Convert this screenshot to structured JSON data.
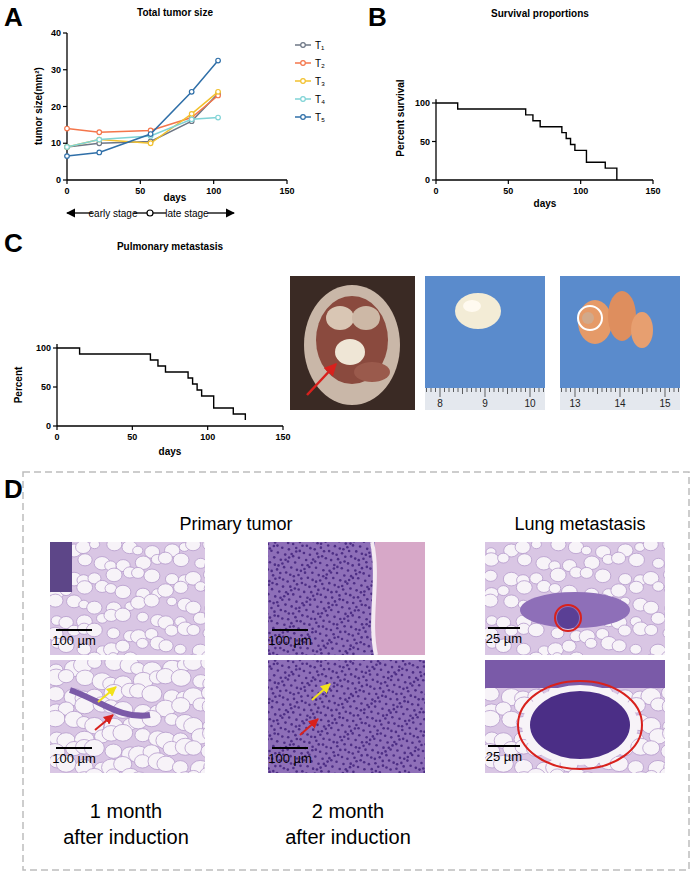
{
  "panel_labels": [
    "A",
    "B",
    "C",
    "D"
  ],
  "chart_data": [
    {
      "type": "line",
      "title": "Total tumor size",
      "x_label": "days",
      "y_label": "tumor size(mm²)",
      "x": [
        0,
        22,
        57,
        85,
        103
      ],
      "xlim": [
        0,
        150
      ],
      "xticks": [
        0,
        50,
        100,
        150
      ],
      "ylim": [
        0,
        40
      ],
      "yticks": [
        0,
        10,
        20,
        30,
        40
      ],
      "marker": "circle",
      "legend": "right",
      "annotations": [
        "early stage",
        "late stage"
      ],
      "series": [
        {
          "name": "T₁",
          "color": "#6d7685",
          "values": [
            9,
            10,
            10.5,
            16,
            23.5
          ]
        },
        {
          "name": "T₂",
          "color": "#f4764b",
          "values": [
            14,
            13,
            13.5,
            17,
            23
          ]
        },
        {
          "name": "T₃",
          "color": "#f2c12e",
          "values": [
            9,
            11,
            10,
            18,
            24
          ]
        },
        {
          "name": "T₄",
          "color": "#7fd3d6",
          "values": [
            9,
            11,
            12,
            16.5,
            17
          ]
        },
        {
          "name": "T₅",
          "color": "#2f6fa8",
          "values": [
            6.5,
            7.5,
            12.5,
            24,
            32.5
          ]
        }
      ]
    },
    {
      "type": "step",
      "title": "Survival proportions",
      "x_label": "days",
      "y_label": "Percent survival",
      "x": [
        0,
        15,
        62,
        67,
        72,
        87,
        90,
        93,
        96,
        104,
        117,
        125
      ],
      "values": [
        100,
        92.3,
        84.6,
        76.9,
        69.2,
        61.5,
        53.8,
        46.2,
        38.5,
        23.1,
        15.4,
        0
      ],
      "color": "#000000",
      "xlim": [
        0,
        150
      ],
      "xticks": [
        0,
        50,
        100,
        150
      ],
      "ylim": [
        0,
        105
      ],
      "yticks": [
        0,
        50,
        100
      ]
    },
    {
      "type": "step",
      "title": "Pulmonary metastasis",
      "x_label": "days",
      "y_label": "Percent",
      "x": [
        0,
        15,
        62,
        67,
        72,
        87,
        90,
        93,
        96,
        104,
        117,
        125
      ],
      "values": [
        100,
        92.3,
        84.6,
        76.9,
        69.2,
        61.5,
        53.8,
        46.2,
        38.5,
        23.1,
        15.4,
        7.7
      ],
      "color": "#000000",
      "xlim": [
        0,
        150
      ],
      "xticks": [
        0,
        50,
        100,
        150
      ],
      "ylim": [
        0,
        105
      ],
      "yticks": [
        0,
        50,
        100
      ]
    }
  ],
  "photos": {
    "rulers": [
      [
        8,
        9,
        10
      ],
      [
        13,
        14,
        15
      ]
    ]
  },
  "histology": {
    "headers": [
      "Primary tumor",
      "Lung metastasis"
    ],
    "scale_bars": [
      "100 µm",
      "100 µm",
      "25 µm",
      "100 µm",
      "100 µm",
      "25 µm"
    ],
    "captions": [
      "1 month\nafter induction",
      "2 month\nafter induction"
    ]
  }
}
